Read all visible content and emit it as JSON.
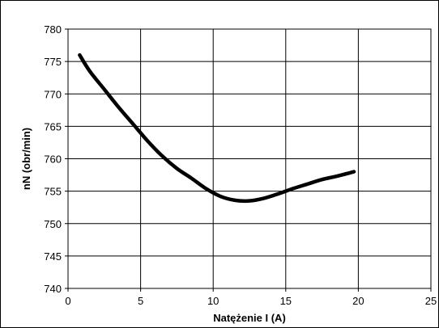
{
  "chart_data": {
    "type": "line",
    "title": "",
    "xlabel": "Natężenie I (A)",
    "ylabel": "nN (obr/min)",
    "xlim": [
      0,
      25
    ],
    "ylim": [
      740,
      780
    ],
    "xticks": [
      0,
      5,
      10,
      15,
      20,
      25
    ],
    "yticks": [
      740,
      745,
      750,
      755,
      760,
      765,
      770,
      775,
      780
    ],
    "grid": true,
    "legend": "none",
    "series": [
      {
        "color": "#000000",
        "x": [
          0.8,
          1.5,
          2.5,
          3.5,
          4.5,
          5.5,
          6.5,
          7.5,
          8.5,
          9.5,
          10.5,
          11.5,
          12.5,
          13.5,
          14.5,
          15.5,
          16.5,
          17.5,
          18.5,
          19.7
        ],
        "y": [
          776.0,
          773.5,
          770.7,
          767.9,
          765.3,
          762.7,
          760.4,
          758.5,
          757.0,
          755.4,
          754.2,
          753.6,
          753.5,
          753.9,
          754.6,
          755.4,
          756.1,
          756.8,
          757.3,
          758.0
        ]
      }
    ]
  }
}
